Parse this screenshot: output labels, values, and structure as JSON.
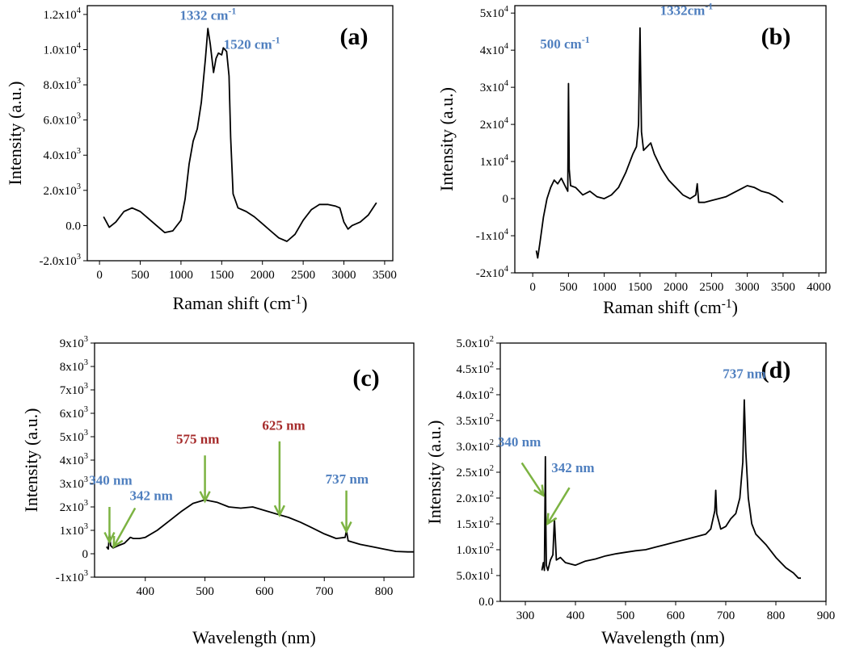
{
  "chart_data": [
    {
      "panel": "(a)",
      "type": "line",
      "xlabel": "Raman shift (cm",
      "xlabel_sup": "-1",
      "xlabel_tail": ")",
      "ylabel": "Intensity (a.u.)",
      "xlim": [
        -150,
        3600
      ],
      "ylim": [
        -2000,
        12500
      ],
      "xticks": [
        0,
        500,
        1000,
        1500,
        2000,
        2500,
        3000,
        3500
      ],
      "xtick_labels": [
        "0",
        "500",
        "1000",
        "1500",
        "2000",
        "2500",
        "3000",
        "3500"
      ],
      "yticks": [
        -2000,
        0,
        2000,
        4000,
        6000,
        8000,
        10000,
        12000
      ],
      "ytick_labels": [
        {
          "base": "-2.0x10",
          "exp": "3"
        },
        {
          "base": "0.0",
          "exp": ""
        },
        {
          "base": "2.0x10",
          "exp": "3"
        },
        {
          "base": "4.0x10",
          "exp": "3"
        },
        {
          "base": "6.0x10",
          "exp": "3"
        },
        {
          "base": "8.0x10",
          "exp": "3"
        },
        {
          "base": "1.0x10",
          "exp": "4"
        },
        {
          "base": "1.2x10",
          "exp": "4"
        }
      ],
      "series": [
        {
          "x": [
            50,
            120,
            200,
            300,
            400,
            500,
            600,
            700,
            800,
            900,
            1000,
            1050,
            1100,
            1150,
            1200,
            1250,
            1300,
            1330,
            1360,
            1400,
            1430,
            1460,
            1500,
            1520,
            1560,
            1590,
            1610,
            1640,
            1700,
            1800,
            1900,
            2000,
            2100,
            2200,
            2300,
            2400,
            2500,
            2600,
            2700,
            2800,
            2900,
            2950,
            3000,
            3050,
            3100,
            3200,
            3300,
            3400
          ],
          "y": [
            500,
            -100,
            200,
            800,
            1000,
            800,
            400,
            0,
            -400,
            -300,
            300,
            1500,
            3500,
            4800,
            5500,
            7000,
            9500,
            11200,
            10300,
            8700,
            9500,
            9800,
            9700,
            10100,
            9900,
            8500,
            5000,
            1800,
            1000,
            800,
            500,
            100,
            -300,
            -700,
            -900,
            -500,
            300,
            900,
            1200,
            1200,
            1100,
            1000,
            200,
            -200,
            0,
            200,
            600,
            1300
          ]
        }
      ],
      "annotations": [
        {
          "text": "1332 cm",
          "sup": "-1",
          "color": "#4f7fbf",
          "x": 1332,
          "y": 11700
        },
        {
          "text": "1520 cm",
          "sup": "-1",
          "color": "#4f7fbf",
          "x": 1870,
          "y": 10050
        }
      ]
    },
    {
      "panel": "(b)",
      "type": "line",
      "xlabel": "Raman shift (cm",
      "xlabel_sup": "-1",
      "xlabel_tail": ")",
      "ylabel": "Intensity (a.u.)",
      "xlim": [
        -250,
        4100
      ],
      "ylim": [
        -20000,
        52000
      ],
      "xticks": [
        0,
        500,
        1000,
        1500,
        2000,
        2500,
        3000,
        3500,
        4000
      ],
      "xtick_labels": [
        "0",
        "500",
        "1000",
        "1500",
        "2000",
        "2500",
        "3000",
        "3500",
        "4000"
      ],
      "yticks": [
        -20000,
        -10000,
        0,
        10000,
        20000,
        30000,
        40000,
        50000
      ],
      "ytick_labels": [
        {
          "base": "-2x10",
          "exp": "4"
        },
        {
          "base": "-1x10",
          "exp": "4"
        },
        {
          "base": "0",
          "exp": ""
        },
        {
          "base": "1x10",
          "exp": "4"
        },
        {
          "base": "2x10",
          "exp": "4"
        },
        {
          "base": "3x10",
          "exp": "4"
        },
        {
          "base": "4x10",
          "exp": "4"
        },
        {
          "base": "5x10",
          "exp": "4"
        }
      ],
      "series": [
        {
          "x": [
            50,
            70,
            100,
            150,
            200,
            250,
            300,
            350,
            400,
            450,
            490,
            500,
            510,
            530,
            600,
            700,
            800,
            900,
            1000,
            1100,
            1200,
            1300,
            1400,
            1450,
            1480,
            1500,
            1520,
            1550,
            1600,
            1650,
            1700,
            1800,
            1900,
            2000,
            2100,
            2200,
            2280,
            2300,
            2320,
            2400,
            2500,
            2600,
            2700,
            2800,
            2900,
            3000,
            3100,
            3200,
            3300,
            3400,
            3500
          ],
          "y": [
            -14000,
            -16000,
            -12000,
            -5000,
            0,
            3000,
            5000,
            4000,
            5500,
            3500,
            2000,
            31000,
            8000,
            3500,
            3000,
            1000,
            2000,
            500,
            0,
            1000,
            3000,
            7000,
            12000,
            14000,
            20000,
            46000,
            18000,
            13000,
            14000,
            15000,
            12000,
            8000,
            5000,
            3000,
            1000,
            0,
            1000,
            4000,
            -1000,
            -1000,
            -500,
            0,
            500,
            1500,
            2500,
            3500,
            3000,
            2000,
            1500,
            500,
            -1000
          ]
        }
      ],
      "annotations": [
        {
          "text": "500 cm",
          "sup": "-1",
          "color": "#4f7fbf",
          "x": 450,
          "y": 40500
        },
        {
          "text": "1332cm",
          "sup": "-1",
          "color": "#4f7fbf",
          "x": 2150,
          "y": 49500
        }
      ]
    },
    {
      "panel": "(c)",
      "type": "line",
      "xlabel": "Wavelength (nm)",
      "ylabel": "Intensity (a.u.)",
      "xlim": [
        315,
        850
      ],
      "ylim": [
        -1000,
        9000
      ],
      "xticks": [
        400,
        500,
        600,
        700,
        800
      ],
      "xtick_labels": [
        "400",
        "500",
        "600",
        "700",
        "800"
      ],
      "yticks": [
        -1000,
        0,
        1000,
        2000,
        3000,
        4000,
        5000,
        6000,
        7000,
        8000,
        9000
      ],
      "ytick_labels": [
        {
          "base": "-1x10",
          "exp": "3"
        },
        {
          "base": "0",
          "exp": ""
        },
        {
          "base": "1x10",
          "exp": "3"
        },
        {
          "base": "2x10",
          "exp": "3"
        },
        {
          "base": "3x10",
          "exp": "3"
        },
        {
          "base": "4x10",
          "exp": "3"
        },
        {
          "base": "5x10",
          "exp": "3"
        },
        {
          "base": "6x10",
          "exp": "3"
        },
        {
          "base": "7x10",
          "exp": "3"
        },
        {
          "base": "8x10",
          "exp": "3"
        },
        {
          "base": "9x10",
          "exp": "3"
        }
      ],
      "series": [
        {
          "x": [
            335,
            338,
            340,
            342,
            346,
            355,
            365,
            375,
            380,
            390,
            400,
            420,
            440,
            460,
            480,
            500,
            520,
            540,
            560,
            580,
            600,
            620,
            640,
            660,
            680,
            700,
            720,
            735,
            737,
            740,
            760,
            780,
            800,
            820,
            840,
            850
          ],
          "y": [
            300,
            200,
            900,
            350,
            250,
            350,
            450,
            700,
            650,
            650,
            700,
            1000,
            1400,
            1800,
            2150,
            2300,
            2200,
            2000,
            1950,
            2000,
            1850,
            1700,
            1550,
            1350,
            1100,
            850,
            650,
            700,
            1000,
            550,
            400,
            300,
            200,
            100,
            80,
            80
          ]
        }
      ],
      "annotations": [
        {
          "text": "340 nm",
          "color": "#4f7fbf",
          "x": 342,
          "y": 2950,
          "tipx": 340,
          "tipy": 500,
          "arrow_top_y": 2000,
          "arrow_top_x": 340
        },
        {
          "text": "342 nm",
          "color": "#4f7fbf",
          "x": 410,
          "y": 2300,
          "tipx": 347,
          "tipy": 300,
          "arrow_top_y": 1950,
          "arrow_top_x": 383
        },
        {
          "text": "575 nm",
          "color": "#a52a2a",
          "x": 488,
          "y": 4700,
          "tipx": 500,
          "tipy": 2250,
          "arrow_top_y": 4200,
          "arrow_top_x": 500
        },
        {
          "text": "625 nm",
          "color": "#a52a2a",
          "x": 632,
          "y": 5300,
          "tipx": 625,
          "tipy": 1650,
          "arrow_top_y": 4800,
          "arrow_top_x": 625
        },
        {
          "text": "737 nm",
          "color": "#4f7fbf",
          "x": 738,
          "y": 3000,
          "tipx": 737,
          "tipy": 950,
          "arrow_top_y": 2700,
          "arrow_top_x": 737
        }
      ]
    },
    {
      "panel": "(d)",
      "type": "line",
      "xlabel": "Wavelength (nm)",
      "ylabel": "Intensity (a.u.)",
      "xlim": [
        250,
        900
      ],
      "ylim": [
        0,
        500
      ],
      "xticks": [
        300,
        400,
        500,
        600,
        700,
        800,
        900
      ],
      "xtick_labels": [
        "300",
        "400",
        "500",
        "600",
        "700",
        "800",
        "900"
      ],
      "yticks": [
        0,
        50,
        100,
        150,
        200,
        250,
        300,
        350,
        400,
        450,
        500
      ],
      "ytick_labels": [
        {
          "base": "0.0",
          "exp": ""
        },
        {
          "base": "5.0x10",
          "exp": "1"
        },
        {
          "base": "1.0x10",
          "exp": "2"
        },
        {
          "base": "1.5x10",
          "exp": "2"
        },
        {
          "base": "2.0x10",
          "exp": "2"
        },
        {
          "base": "2.5x10",
          "exp": "2"
        },
        {
          "base": "3.0x10",
          "exp": "2"
        },
        {
          "base": "3.5x10",
          "exp": "2"
        },
        {
          "base": "4.0x10",
          "exp": "2"
        },
        {
          "base": "4.5x10",
          "exp": "2"
        },
        {
          "base": "5.0x10",
          "exp": "2"
        }
      ],
      "series": [
        {
          "x": [
            333,
            336,
            338,
            340,
            341,
            342,
            345,
            350,
            355,
            358,
            362,
            370,
            380,
            400,
            420,
            440,
            460,
            480,
            500,
            520,
            540,
            560,
            580,
            600,
            620,
            640,
            660,
            670,
            678,
            680,
            682,
            690,
            700,
            710,
            720,
            728,
            734,
            737,
            740,
            745,
            752,
            760,
            780,
            800,
            820,
            835,
            845,
            850
          ],
          "y": [
            60,
            75,
            60,
            280,
            150,
            70,
            60,
            80,
            90,
            160,
            80,
            85,
            75,
            70,
            78,
            82,
            88,
            92,
            95,
            98,
            100,
            105,
            110,
            115,
            120,
            125,
            130,
            140,
            175,
            215,
            170,
            140,
            145,
            160,
            170,
            200,
            270,
            390,
            290,
            200,
            150,
            130,
            110,
            85,
            65,
            55,
            45,
            45
          ]
        }
      ],
      "annotations": [
        {
          "text": "340 nm",
          "color": "#4f7fbf",
          "x": 288,
          "y": 300,
          "tipx": 336,
          "tipy": 205,
          "arrow_top_y": 268,
          "arrow_top_x": 293
        },
        {
          "text": "342 nm",
          "color": "#4f7fbf",
          "x": 395,
          "y": 250,
          "tipx": 344,
          "tipy": 150,
          "arrow_top_y": 220,
          "arrow_top_x": 388
        },
        {
          "text": "737 nm",
          "color": "#4f7fbf",
          "x": 737,
          "y": 432
        }
      ]
    }
  ],
  "colors": {
    "line": "#000000",
    "arrow": "#7cb342",
    "blue_label": "#4f7fbf",
    "red_label": "#a52a2a"
  }
}
